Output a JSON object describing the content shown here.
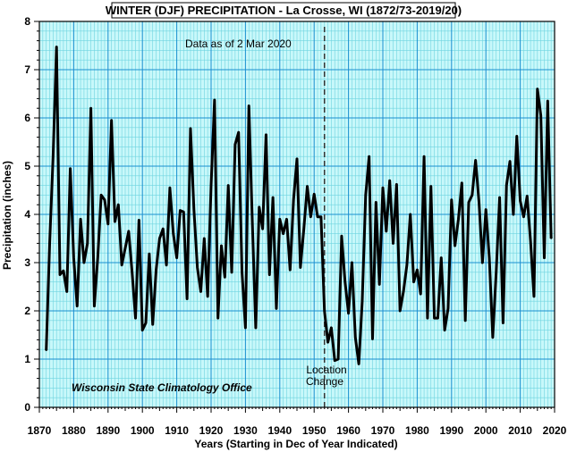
{
  "chart_data": {
    "type": "line",
    "title": "WINTER (DJF)  PRECIPITATION - La Crosse,  WI (1872/73-2019/20)",
    "xlabel": "Years (Starting in Dec of Year Indicated)",
    "ylabel": "Precipitation (inches)",
    "xlim": [
      1870,
      2020
    ],
    "ylim": [
      0,
      8
    ],
    "x_ticks": [
      "1870",
      "1880",
      "1890",
      "1900",
      "1910",
      "1920",
      "1930",
      "1940",
      "1950",
      "1960",
      "1970",
      "1980",
      "1990",
      "2000",
      "2010",
      "2020"
    ],
    "y_ticks": [
      "0",
      "1",
      "2",
      "3",
      "4",
      "5",
      "6",
      "7",
      "8"
    ],
    "grid": "on (minor every 1 year / 0.2 in, major every 10 years / 1 in)",
    "background_color": "#c8f8fa",
    "minor_grid_color": "#6fd4e0",
    "major_grid_color": "#1a8fd0",
    "line_color": "#000000",
    "annotations": {
      "data_as_of": "Data as of 2 Mar 2020",
      "location_change_line1": "Location",
      "location_change_line2": "Change",
      "location_change_year": 1953,
      "credit": "Wisconsin State Climatology Office"
    },
    "series": [
      {
        "x": [
          1872,
          1873,
          1874,
          1875,
          1876,
          1877,
          1878,
          1879,
          1880,
          1881,
          1882,
          1883,
          1884,
          1885,
          1886,
          1887,
          1888,
          1889,
          1890,
          1891,
          1892,
          1893,
          1894,
          1895,
          1896,
          1897,
          1898,
          1899,
          1900,
          1901,
          1902,
          1903,
          1904,
          1905,
          1906,
          1907,
          1908,
          1909,
          1910,
          1911,
          1912,
          1913,
          1914,
          1915,
          1916,
          1917,
          1918,
          1919,
          1920,
          1921,
          1922,
          1923,
          1924,
          1925,
          1926,
          1927,
          1928,
          1929,
          1930,
          1931,
          1932,
          1933,
          1934,
          1935,
          1936,
          1937,
          1938,
          1939,
          1940,
          1941,
          1942,
          1943,
          1944,
          1945,
          1946,
          1947,
          1948,
          1949,
          1950,
          1951,
          1952,
          1953,
          1954,
          1955,
          1956,
          1957,
          1958,
          1959,
          1960,
          1961,
          1962,
          1963,
          1964,
          1965,
          1966,
          1967,
          1968,
          1969,
          1970,
          1971,
          1972,
          1973,
          1974,
          1975,
          1976,
          1977,
          1978,
          1979,
          1980,
          1981,
          1982,
          1983,
          1984,
          1985,
          1986,
          1987,
          1988,
          1989,
          1990,
          1991,
          1992,
          1993,
          1994,
          1995,
          1996,
          1997,
          1998,
          1999,
          2000,
          2001,
          2002,
          2003,
          2004,
          2005,
          2006,
          2007,
          2008,
          2009,
          2010,
          2011,
          2012,
          2013,
          2014,
          2015,
          2016,
          2017,
          2018,
          2019
        ],
        "values": [
          1.18,
          3.4,
          5.2,
          7.47,
          2.75,
          2.83,
          2.4,
          4.95,
          3.1,
          2.1,
          3.9,
          3.0,
          3.4,
          6.2,
          2.1,
          3.1,
          4.4,
          4.3,
          3.8,
          5.95,
          3.85,
          4.2,
          2.95,
          3.3,
          3.65,
          2.8,
          1.85,
          3.88,
          1.6,
          1.75,
          3.18,
          1.72,
          2.85,
          3.5,
          3.7,
          2.95,
          4.55,
          3.6,
          3.1,
          4.08,
          4.05,
          2.25,
          5.78,
          4.1,
          2.9,
          2.4,
          3.5,
          2.3,
          4.6,
          6.37,
          1.85,
          3.35,
          2.7,
          4.6,
          2.8,
          5.45,
          5.7,
          2.8,
          1.65,
          6.25,
          3.85,
          1.65,
          4.15,
          3.7,
          5.65,
          2.75,
          4.35,
          2.05,
          3.9,
          3.6,
          3.9,
          2.85,
          4.3,
          5.15,
          2.9,
          3.7,
          4.58,
          3.95,
          4.42,
          3.95,
          3.95,
          2.0,
          1.35,
          1.65,
          0.97,
          1.0,
          3.55,
          2.6,
          1.95,
          3.0,
          1.45,
          0.9,
          2.2,
          4.4,
          5.2,
          1.42,
          4.25,
          2.55,
          4.55,
          3.65,
          4.7,
          3.4,
          4.62,
          2.0,
          2.4,
          2.95,
          4.0,
          2.6,
          2.85,
          2.35,
          5.2,
          1.85,
          4.58,
          1.85,
          1.85,
          3.1,
          1.6,
          2.05,
          4.3,
          3.35,
          3.9,
          4.65,
          1.8,
          4.25,
          4.4,
          5.12,
          4.25,
          3.0,
          4.1,
          3.1,
          1.45,
          2.8,
          4.35,
          1.75,
          4.6,
          5.1,
          4.0,
          5.62,
          4.28,
          3.95,
          4.38,
          3.45,
          2.3,
          6.6,
          6.05,
          3.1,
          6.35,
          3.5
        ]
      }
    ]
  }
}
